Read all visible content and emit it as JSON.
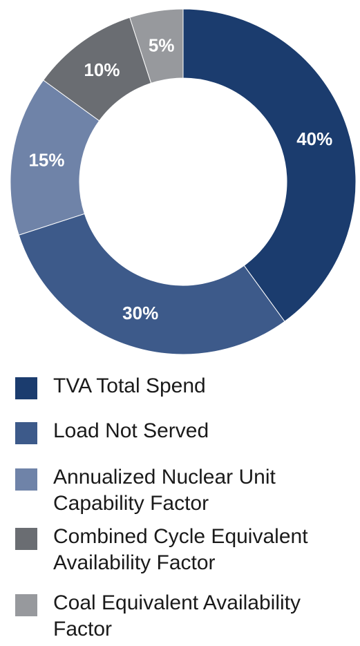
{
  "chart_data": {
    "type": "pie",
    "donut": true,
    "categories": [
      "TVA Total Spend",
      "Load Not Served",
      "Annualized Nuclear Unit Capability Factor",
      "Combined Cycle Equivalent Availability Factor",
      "Coal Equivalent Availability Factor"
    ],
    "values": [
      40,
      30,
      15,
      10,
      5
    ],
    "value_labels": [
      "40%",
      "30%",
      "15%",
      "10%",
      "5%"
    ],
    "colors": [
      "#1b3c6e",
      "#3d5a8a",
      "#6f83a8",
      "#6a6d72",
      "#97999d"
    ],
    "legend_position": "bottom"
  },
  "legend": {
    "items": [
      {
        "label": "TVA Total Spend",
        "color": "#1b3c6e"
      },
      {
        "label": "Load Not Served",
        "color": "#3d5a8a"
      },
      {
        "label": "Annualized Nuclear Unit Capability Factor",
        "color": "#6f83a8"
      },
      {
        "label": "Combined Cycle Equivalent Availability Factor",
        "color": "#6a6d72"
      },
      {
        "label": "Coal Equivalent Availability Factor",
        "color": "#97999d"
      }
    ]
  }
}
